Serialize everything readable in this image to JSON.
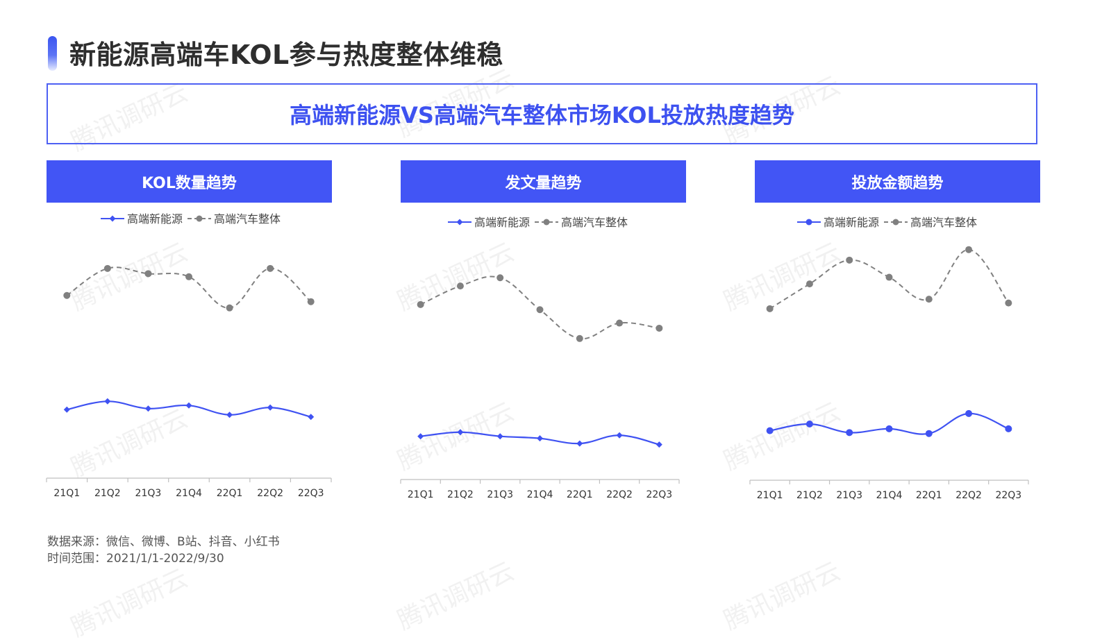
{
  "page": {
    "title": "新能源高端车KOL参与热度整体维稳",
    "banner": "高端新能源VS高端汽车整体市场KOL投放热度趋势",
    "footer": {
      "source": "数据来源：微信、微博、B站、抖音、小红书",
      "period": "时间范围：2021/1/1-2022/9/30"
    },
    "watermark": "腾讯调研云"
  },
  "colors": {
    "blue": "#3f52f2",
    "gray": "#808080",
    "header": "#4255f5"
  },
  "chart_data": [
    {
      "type": "line",
      "title": "KOL数量趋势",
      "categories": [
        "21Q1",
        "21Q2",
        "21Q3",
        "21Q4",
        "22Q1",
        "22Q2",
        "22Q3"
      ],
      "series": [
        {
          "name": "高端新能源",
          "values": [
            33.0,
            37.0,
            33.5,
            35.0,
            30.5,
            34.0,
            29.5
          ]
        },
        {
          "name": "高端汽车整体",
          "values": [
            88.0,
            101.0,
            98.5,
            97.0,
            82.0,
            101.0,
            85.0
          ]
        }
      ],
      "ylim": [
        0,
        120
      ],
      "legend": "top",
      "grid": false
    },
    {
      "type": "line",
      "title": "发文量趋势",
      "categories": [
        "21Q1",
        "21Q2",
        "21Q3",
        "21Q4",
        "22Q1",
        "22Q2",
        "22Q3"
      ],
      "series": [
        {
          "name": "高端新能源",
          "values": [
            21.0,
            23.0,
            21.0,
            20.0,
            17.5,
            21.5,
            17.0
          ]
        },
        {
          "name": "高端汽车整体",
          "values": [
            85.0,
            94.0,
            98.0,
            82.5,
            68.5,
            76.0,
            73.5
          ]
        }
      ],
      "ylim": [
        0,
        120
      ],
      "legend": "top",
      "grid": false
    },
    {
      "type": "line",
      "title": "投放金额趋势",
      "categories": [
        "21Q1",
        "21Q2",
        "21Q3",
        "21Q4",
        "22Q1",
        "22Q2",
        "22Q3"
      ],
      "series": [
        {
          "name": "高端新能源",
          "values": [
            26.0,
            29.5,
            25.0,
            27.0,
            24.5,
            35.0,
            27.0
          ]
        },
        {
          "name": "高端汽车整体",
          "values": [
            90.0,
            103.0,
            115.5,
            106.5,
            95.0,
            121.0,
            93.0
          ]
        }
      ],
      "ylim": [
        0,
        130
      ],
      "legend": "top",
      "grid": false
    }
  ]
}
